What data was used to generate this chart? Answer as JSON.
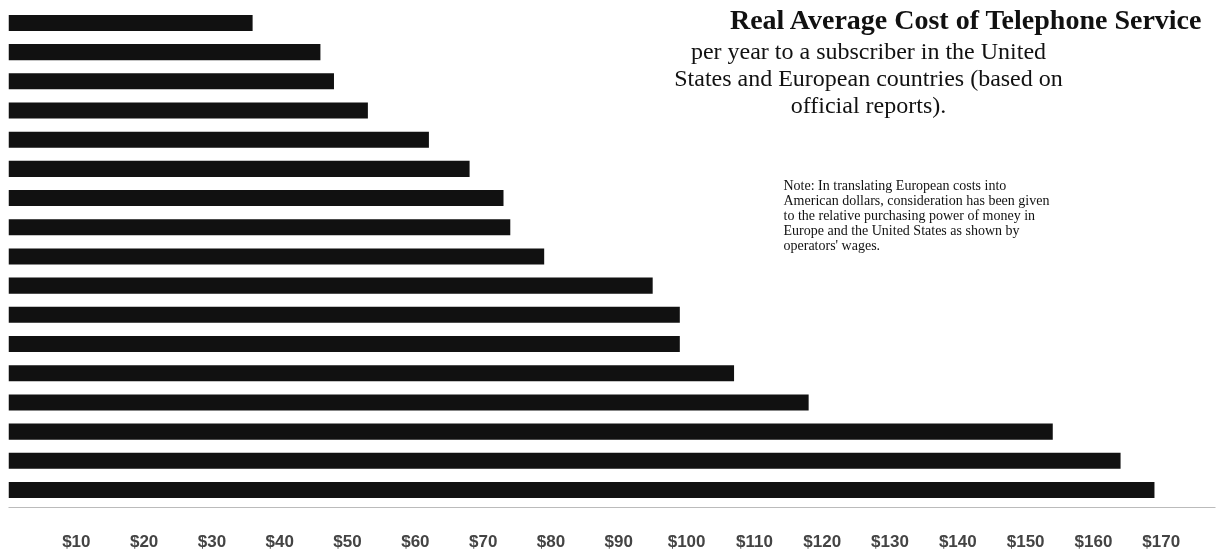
{
  "chart_data": {
    "type": "bar",
    "orientation": "horizontal",
    "title": "Real Average Cost of Telephone Service",
    "subtitle": "per year to a subscriber in the United States and European countries (based on official reports).",
    "annotations": [
      "Note: In translating European costs into American dollars, consideration has been given to the relative purchasing power of money in Europe and the United States as shown by operators' wages."
    ],
    "categories": [
      null,
      null,
      null,
      null,
      null,
      null,
      null,
      null,
      null,
      null,
      null,
      null,
      null,
      null,
      null,
      null,
      null
    ],
    "values": [
      36,
      46,
      48,
      53,
      62,
      68,
      73,
      74,
      79,
      95,
      99,
      99,
      107,
      118,
      154,
      164,
      169
    ],
    "color": "#111111",
    "xlim": [
      0,
      178
    ],
    "xticks": [
      {
        "value": 10,
        "label": "$10"
      },
      {
        "value": 20,
        "label": "$20"
      },
      {
        "value": 30,
        "label": "$30"
      },
      {
        "value": 40,
        "label": "$40"
      },
      {
        "value": 50,
        "label": "$50"
      },
      {
        "value": 60,
        "label": "$60"
      },
      {
        "value": 70,
        "label": "$70"
      },
      {
        "value": 80,
        "label": "$80"
      },
      {
        "value": 90,
        "label": "$90"
      },
      {
        "value": 100,
        "label": "$100"
      },
      {
        "value": 110,
        "label": "$110"
      },
      {
        "value": 120,
        "label": "$120"
      },
      {
        "value": 130,
        "label": "$130"
      },
      {
        "value": 140,
        "label": "$140"
      },
      {
        "value": 150,
        "label": "$150"
      },
      {
        "value": 160,
        "label": "$160"
      },
      {
        "value": 170,
        "label": "$170"
      }
    ],
    "grid": false
  }
}
